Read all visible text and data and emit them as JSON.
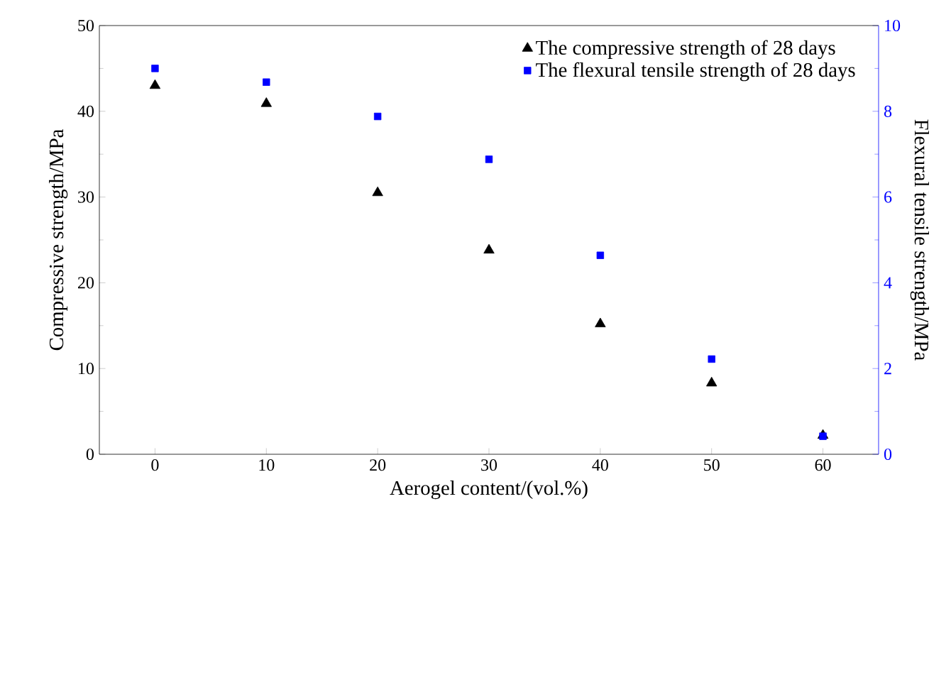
{
  "chart_data": {
    "type": "scatter",
    "xlabel": "Aerogel content/(vol.%)",
    "ylabel": "Compressive strength/MPa",
    "y2label": "Flexural tensile strength/MPa",
    "x": [
      0,
      10,
      20,
      30,
      40,
      50,
      60
    ],
    "series": [
      {
        "name": "The compressive strength of 28 days",
        "color": "#000000",
        "marker": "triangle",
        "values": [
          43.0,
          40.9,
          30.5,
          23.8,
          15.2,
          8.3,
          2.2
        ]
      },
      {
        "name": "The flexural tensile strength of 28 days",
        "color": "#0000ff",
        "marker": "square",
        "axis": "y2",
        "values": [
          9.0,
          8.68,
          7.88,
          6.88,
          4.64,
          2.22,
          0.42
        ]
      }
    ],
    "xlim": [
      -5,
      65
    ],
    "xticks": [
      0,
      10,
      20,
      30,
      40,
      50,
      60
    ],
    "ylim": [
      0,
      50
    ],
    "yticks": [
      0,
      10,
      20,
      30,
      40,
      50
    ],
    "y2lim": [
      0,
      10
    ],
    "y2ticks": [
      0,
      2,
      4,
      6,
      8,
      10
    ],
    "legend": "top right",
    "grid": false
  }
}
